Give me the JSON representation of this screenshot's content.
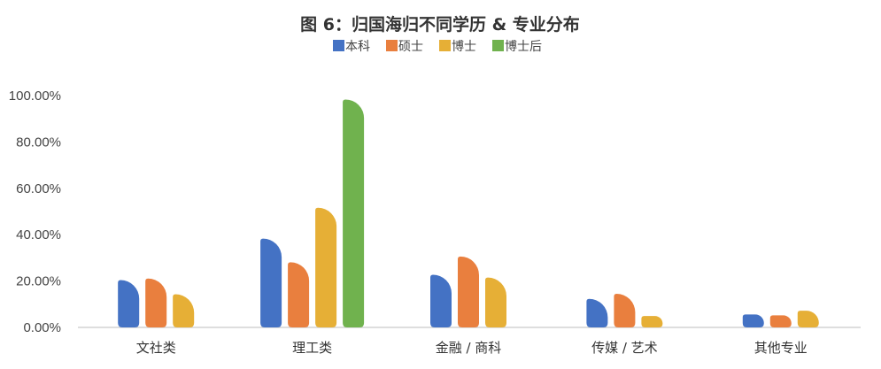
{
  "chart_data": {
    "type": "bar",
    "title": "图 6：归国海归不同学历 & 专业分布",
    "categories": [
      "文社类",
      "理工类",
      "金融 / 商科",
      "传媒 / 艺术",
      "其他专业"
    ],
    "series": [
      {
        "name": "本科",
        "color": "#4472C4",
        "values": [
          20.4,
          38.3,
          22.7,
          12.3,
          5.6
        ]
      },
      {
        "name": "硕士",
        "color": "#E97F3E",
        "values": [
          21.1,
          28.1,
          30.6,
          14.5,
          5.2
        ]
      },
      {
        "name": "博士",
        "color": "#E6AF36",
        "values": [
          14.3,
          51.6,
          21.5,
          4.9,
          7.2
        ]
      },
      {
        "name": "博士后",
        "color": "#70B24E",
        "values": [
          0,
          98.3,
          0,
          0,
          0
        ]
      }
    ],
    "ylim": [
      0,
      100
    ],
    "yticks": [
      "0.00%",
      "20.00%",
      "40.00%",
      "60.00%",
      "80.00%",
      "100.00%"
    ],
    "ytick_values": [
      0,
      20,
      40,
      60,
      80,
      100
    ],
    "xlabel": "",
    "ylabel": "",
    "grid": false,
    "legend": "top"
  }
}
